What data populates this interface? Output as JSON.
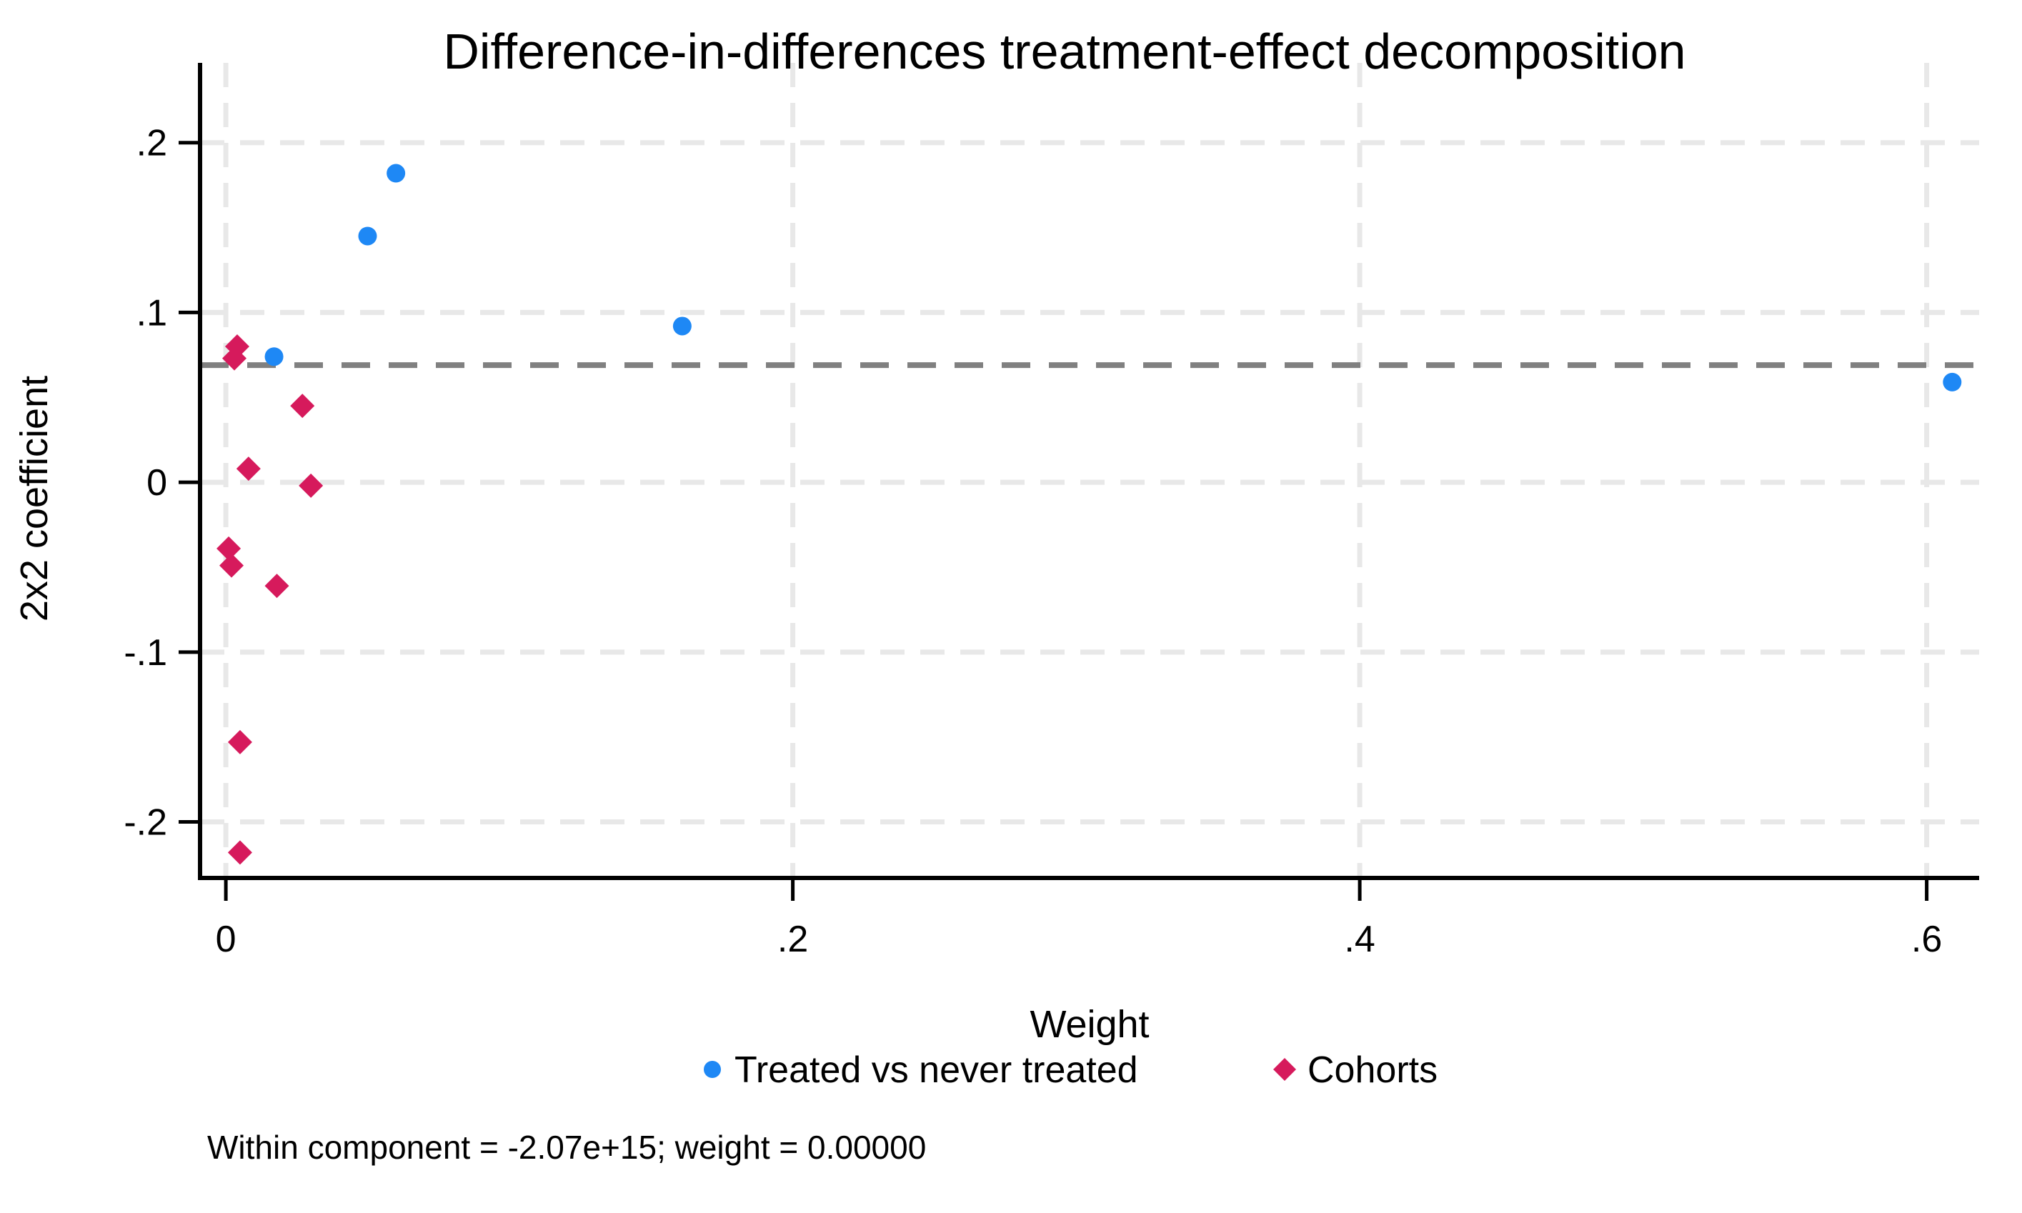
{
  "chart_data": {
    "type": "scatter",
    "title": "Difference-in-differences treatment-effect decomposition",
    "xlabel": "Weight",
    "ylabel": "2x2 coefficient",
    "note": "Within component = -2.07e+15; weight = 0.00000",
    "xlim": [
      -0.0091,
      0.6185
    ],
    "ylim": [
      -0.233,
      0.247
    ],
    "xticks": [
      0,
      0.2,
      0.4,
      0.6
    ],
    "xtick_labels": [
      "0",
      ".2",
      ".4",
      ".6"
    ],
    "yticks": [
      0.2,
      0.1,
      0,
      -0.1,
      -0.2
    ],
    "ytick_labels": [
      ".2",
      ".1",
      "0",
      "-.1",
      "-.2"
    ],
    "grid": true,
    "grid_color": "#E8E8E8",
    "axis_color": "#000000",
    "reference_line": {
      "y": 0.069,
      "style": "dashed",
      "color": "#808080"
    },
    "legend_position": "bottom",
    "series": [
      {
        "name": "Treated vs never treated",
        "marker": "circle",
        "color": "#1E88F5",
        "points": [
          [
            0.06,
            0.182
          ],
          [
            0.05,
            0.145
          ],
          [
            0.017,
            0.074
          ],
          [
            0.161,
            0.092
          ],
          [
            0.609,
            0.059
          ]
        ]
      },
      {
        "name": "Cohorts",
        "marker": "diamond",
        "color": "#D61A5C",
        "points": [
          [
            0.004,
            0.08
          ],
          [
            0.003,
            0.073
          ],
          [
            0.027,
            0.045
          ],
          [
            0.008,
            0.008
          ],
          [
            0.03,
            -0.002
          ],
          [
            0.001,
            -0.039
          ],
          [
            0.002,
            -0.049
          ],
          [
            0.018,
            -0.061
          ],
          [
            0.005,
            -0.153
          ],
          [
            0.005,
            -0.218
          ]
        ]
      }
    ]
  }
}
